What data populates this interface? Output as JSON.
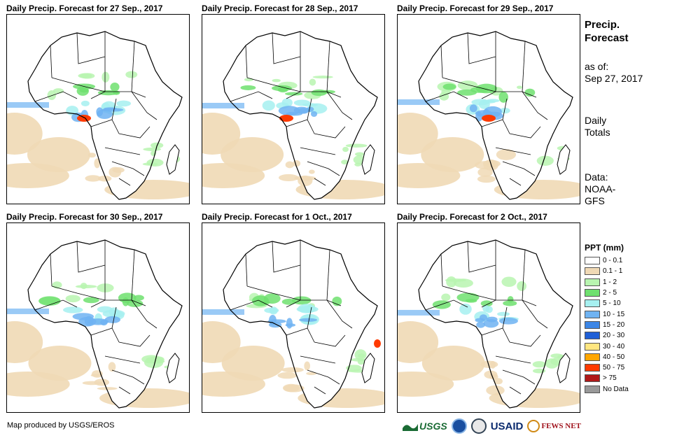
{
  "panels": [
    {
      "title": "Daily Precip. Forecast for 27  Sep., 2017"
    },
    {
      "title": "Daily Precip. Forecast for 28  Sep., 2017"
    },
    {
      "title": "Daily Precip. Forecast for 29  Sep., 2017"
    },
    {
      "title": "Daily Precip. Forecast for 30  Sep., 2017"
    },
    {
      "title": "Daily Precip. Forecast for 1 Oct., 2017"
    },
    {
      "title": "Daily Precip. Forecast for 2 Oct., 2017"
    }
  ],
  "sidebar": {
    "title_line1": "Precip.",
    "title_line2": "Forecast",
    "asof_line1": "as of:",
    "asof_line2": "Sep 27, 2017",
    "totals_line1": "Daily",
    "totals_line2": "Totals",
    "data_line1": "Data:",
    "data_line2": "NOAA-",
    "data_line3": "GFS"
  },
  "legend": {
    "title": "PPT (mm)",
    "items": [
      {
        "label": "0 - 0.1",
        "color": "#ffffff"
      },
      {
        "label": "0.1 - 1",
        "color": "#f0d9b5"
      },
      {
        "label": "1 - 2",
        "color": "#b8f5b0"
      },
      {
        "label": "2 - 5",
        "color": "#6fe06f"
      },
      {
        "label": "5 - 10",
        "color": "#a6f0f0"
      },
      {
        "label": "10 - 15",
        "color": "#6fb3f2"
      },
      {
        "label": "15 - 20",
        "color": "#3c86e6"
      },
      {
        "label": "20 - 30",
        "color": "#1f5fd6"
      },
      {
        "label": "30 - 40",
        "color": "#ffe680"
      },
      {
        "label": "40 - 50",
        "color": "#ffa600"
      },
      {
        "label": "50 - 75",
        "color": "#ff3a00"
      },
      {
        "label": "> 75",
        "color": "#b01818"
      },
      {
        "label": "No Data",
        "color": "#999999"
      }
    ]
  },
  "credit": "Map produced by USGS/EROS",
  "logos": {
    "usgs": "USGS",
    "usaid": "USAID",
    "fews": "FEWS NET"
  }
}
